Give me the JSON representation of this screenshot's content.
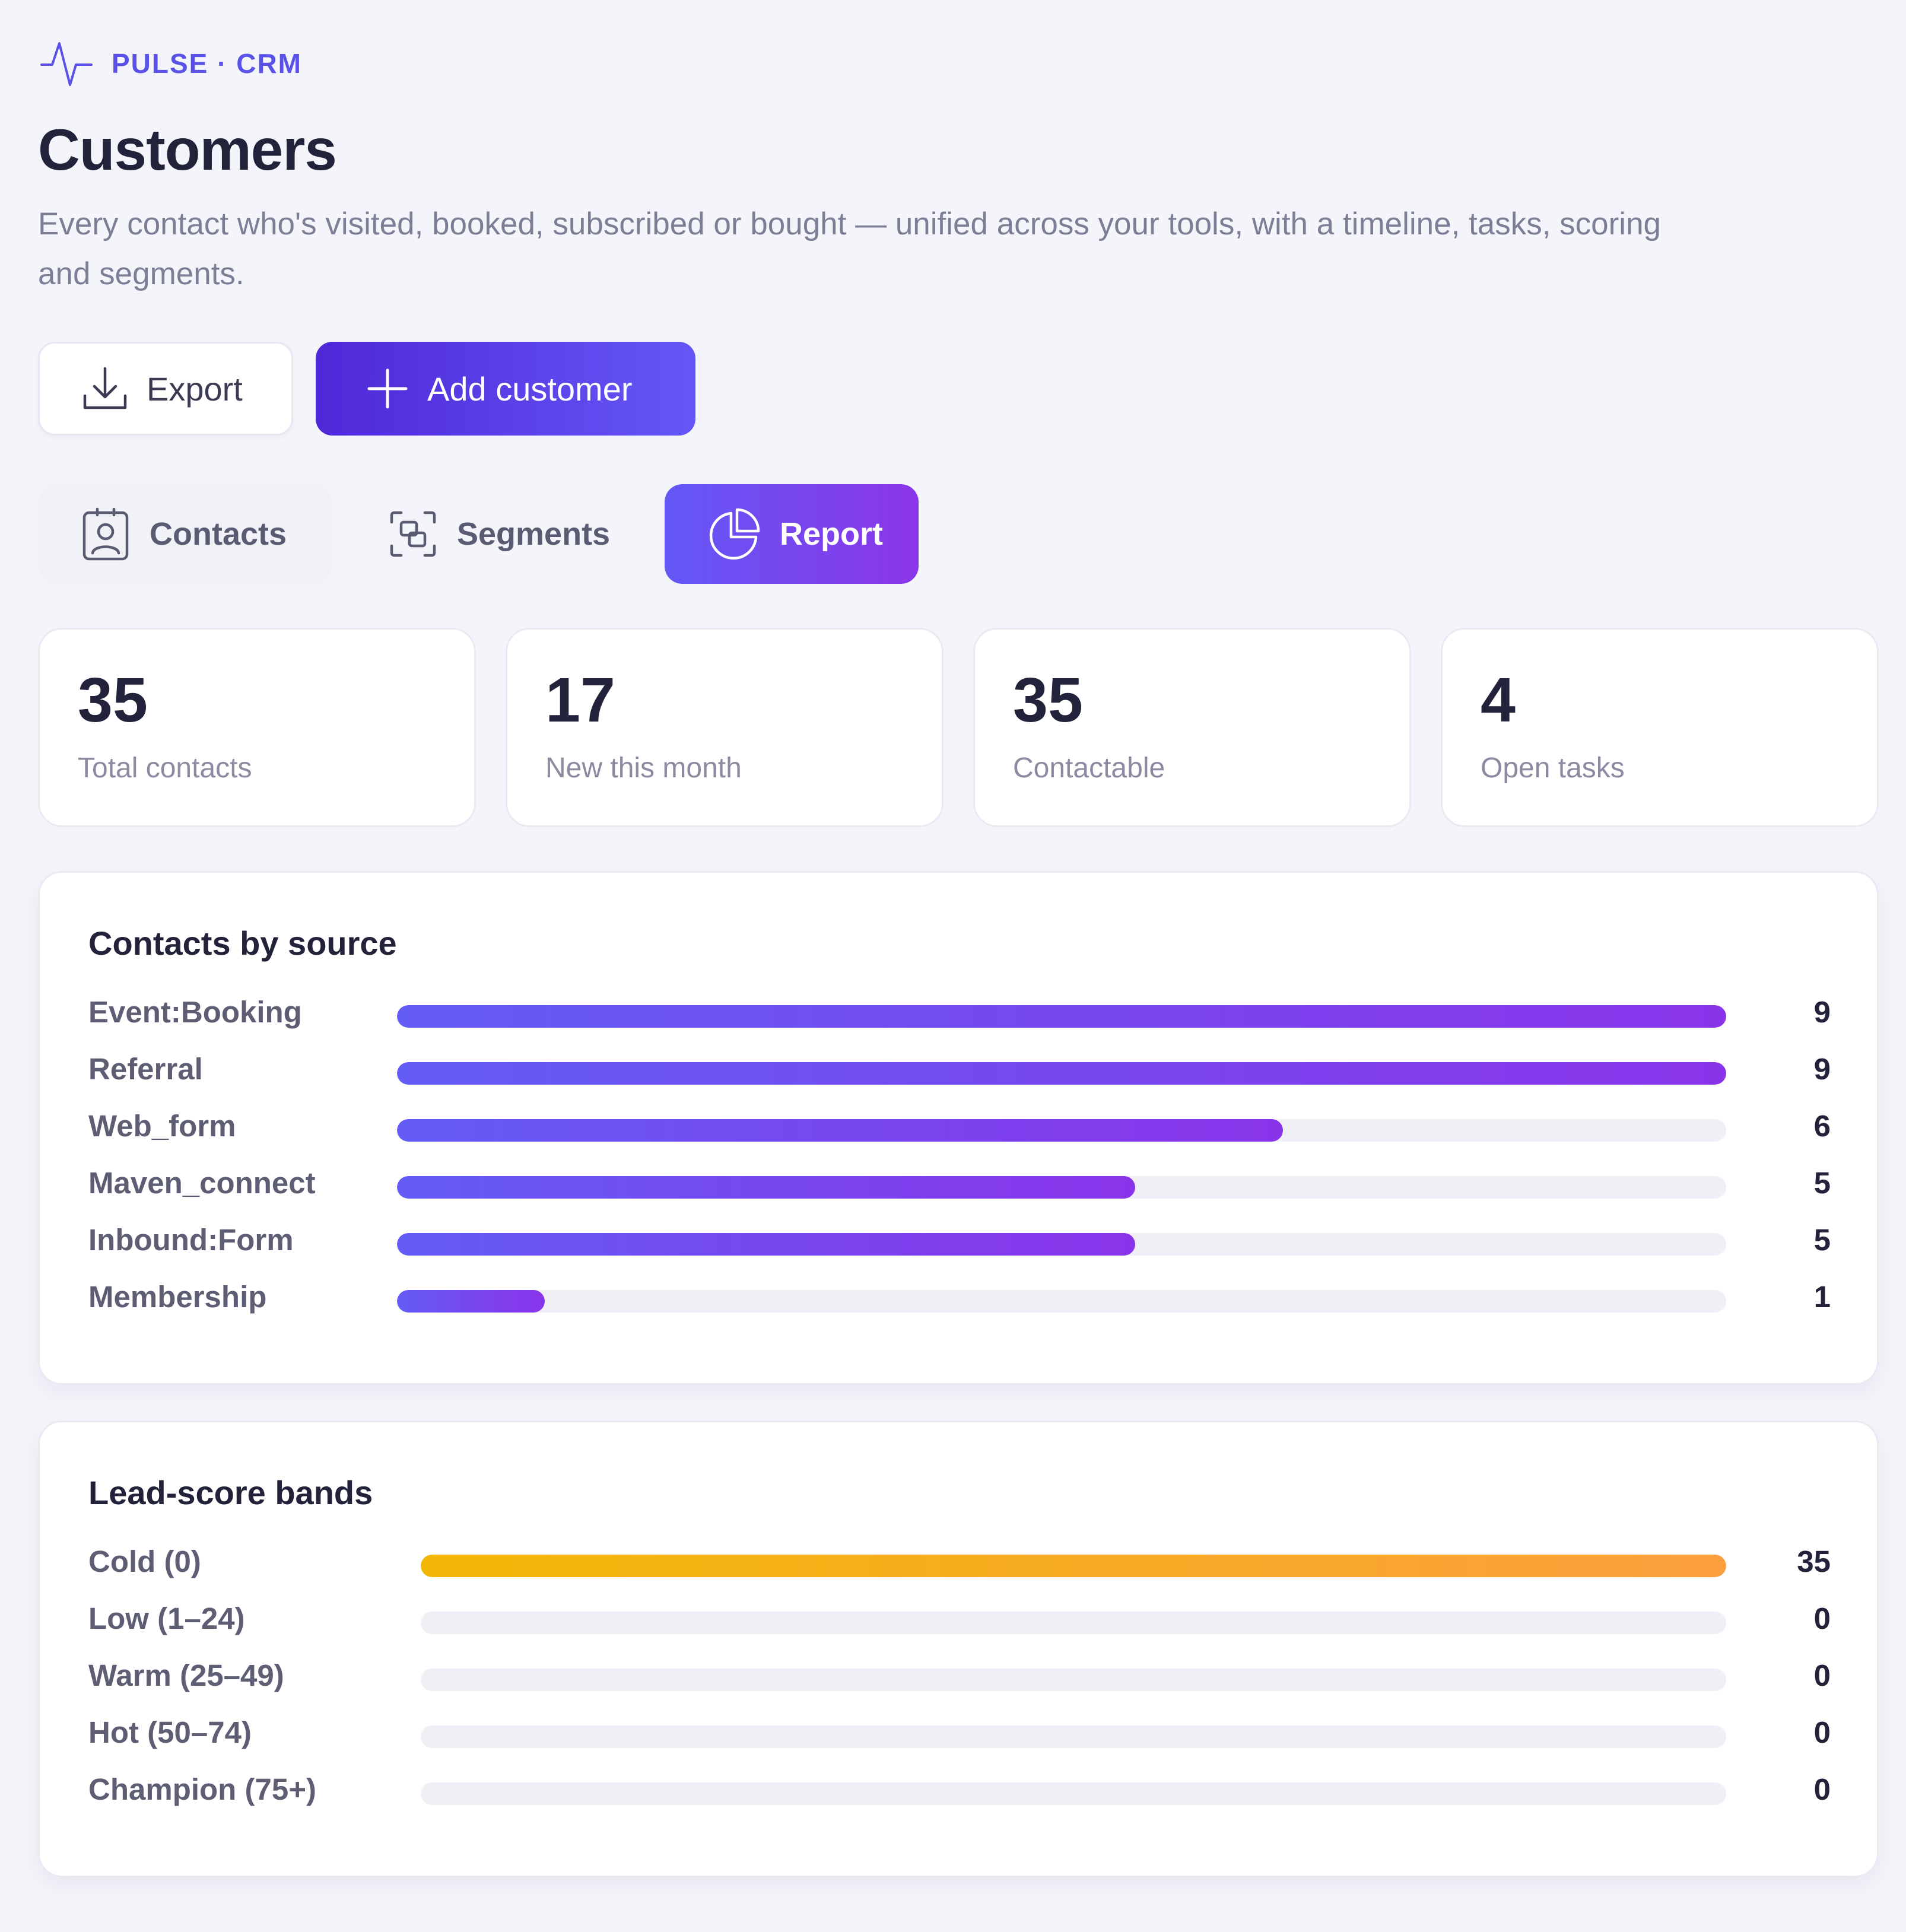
{
  "brand": {
    "name": "PULSE · CRM",
    "icon": "pulse-wave-icon",
    "color": "#5a52e8"
  },
  "header": {
    "title": "Customers",
    "subtitle": "Every contact who's visited, booked, subscribed or bought — unified across your tools, with a timeline, tasks, scoring and segments."
  },
  "actions": {
    "export": {
      "label": "Export",
      "icon": "download-icon"
    },
    "add": {
      "label": "Add customer",
      "icon": "plus-icon"
    }
  },
  "tabs": [
    {
      "label": "Contacts",
      "icon": "contact-card-icon",
      "active": false
    },
    {
      "label": "Segments",
      "icon": "segments-icon",
      "active": false
    },
    {
      "label": "Report",
      "icon": "pie-chart-icon",
      "active": true
    }
  ],
  "stats": [
    {
      "value": "35",
      "label": "Total contacts"
    },
    {
      "value": "17",
      "label": "New this month"
    },
    {
      "value": "35",
      "label": "Contactable"
    },
    {
      "value": "4",
      "label": "Open tasks"
    }
  ],
  "chart_data": [
    {
      "type": "bar",
      "title": "Contacts by source",
      "orientation": "horizontal",
      "categories": [
        "Event:Booking",
        "Referral",
        "Web_form",
        "Maven_connect",
        "Inbound:Form",
        "Membership"
      ],
      "values": [
        9,
        9,
        6,
        5,
        5,
        1
      ],
      "max": 9,
      "color": "#635cf5"
    },
    {
      "type": "bar",
      "title": "Lead-score bands",
      "orientation": "horizontal",
      "categories": [
        "Cold (0)",
        "Low (1–24)",
        "Warm (25–49)",
        "Hot (50–74)",
        "Champion (75+)"
      ],
      "values": [
        35,
        0,
        0,
        0,
        0
      ],
      "max": 35,
      "color": "#f2b705"
    }
  ]
}
